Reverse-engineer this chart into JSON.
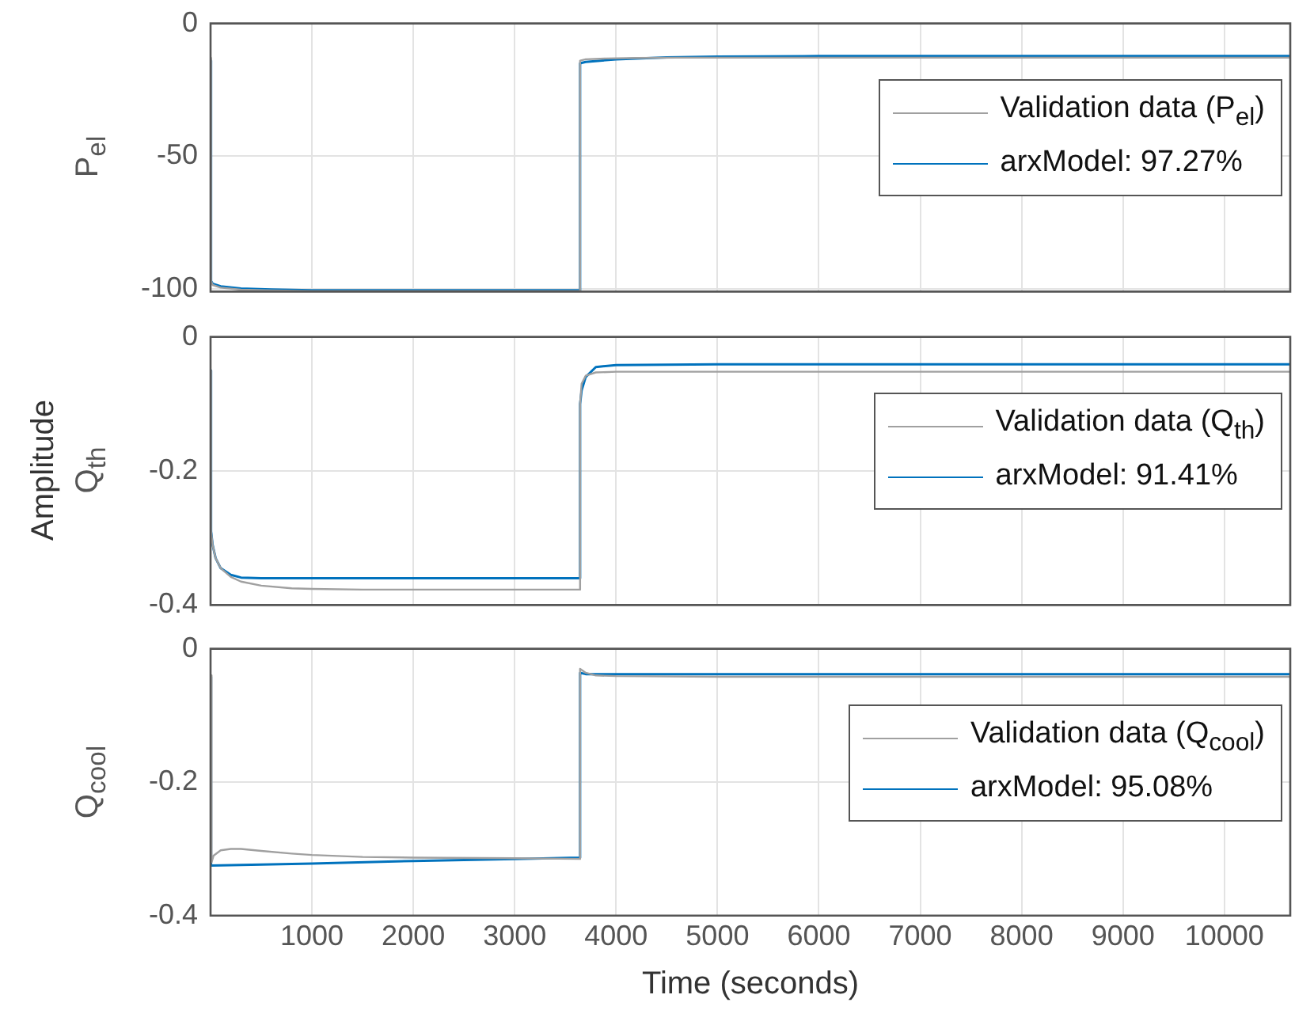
{
  "chart_data": [
    {
      "type": "line",
      "ylabel": "P$_{el}$",
      "xlim": [
        0,
        10650
      ],
      "xticks": [
        1000,
        2000,
        3000,
        4000,
        5000,
        6000,
        7000,
        8000,
        9000,
        10000
      ],
      "ylim": [
        -101,
        0
      ],
      "yticks": [
        -100,
        -50,
        0
      ],
      "grid": true,
      "legend": "top right",
      "tick_labels": "y",
      "series": [
        {
          "name": "Validation data (P$_{el}$)",
          "color": "#a0a0a0",
          "x": [
            0,
            5,
            20,
            100,
            300,
            600,
            1000,
            2000,
            3000,
            3640,
            3645,
            3700,
            3900,
            4200,
            4600,
            5000,
            6000,
            8000,
            10650
          ],
          "values": [
            -13,
            -97,
            -98.5,
            -99.5,
            -100.3,
            -100.6,
            -100.8,
            -100.8,
            -100.8,
            -100.8,
            -14,
            -13.5,
            -13.2,
            -13,
            -12.9,
            -12.9,
            -12.9,
            -12.9,
            -12.9
          ]
        },
        {
          "name": "arxModel: 97.27%",
          "color": "#0072bd",
          "x": [
            0,
            5,
            20,
            100,
            300,
            600,
            1000,
            2000,
            3000,
            3640,
            3645,
            3700,
            4000,
            4500,
            5000,
            6000,
            8000,
            10650
          ],
          "values": [
            -14,
            -97,
            -98,
            -99,
            -99.8,
            -100.2,
            -100.5,
            -100.5,
            -100.5,
            -100.5,
            -15,
            -14.5,
            -13.5,
            -12.8,
            -12.5,
            -12.3,
            -12.3,
            -12.3
          ]
        }
      ]
    },
    {
      "type": "line",
      "ylabel": "Q$_{th}$",
      "annotations": [
        "Amplitude"
      ],
      "xlim": [
        0,
        10650
      ],
      "xticks": [
        1000,
        2000,
        3000,
        4000,
        5000,
        6000,
        7000,
        8000,
        9000,
        10000
      ],
      "ylim": [
        -0.4,
        0
      ],
      "yticks": [
        -0.4,
        -0.2,
        0
      ],
      "grid": true,
      "legend": "top right",
      "tick_labels": "y",
      "series": [
        {
          "name": "Validation data (Q$_{th}$)",
          "color": "#a0a0a0",
          "x": [
            0,
            5,
            20,
            50,
            100,
            200,
            300,
            500,
            800,
            1000,
            1500,
            2000,
            3640,
            3645,
            3660,
            3700,
            3800,
            4000,
            5000,
            10650
          ],
          "values": [
            -0.05,
            -0.29,
            -0.31,
            -0.33,
            -0.345,
            -0.358,
            -0.365,
            -0.371,
            -0.375,
            -0.376,
            -0.377,
            -0.377,
            -0.377,
            -0.1,
            -0.07,
            -0.058,
            -0.053,
            -0.052,
            -0.052,
            -0.052
          ]
        },
        {
          "name": "arxModel: 91.41%",
          "color": "#0072bd",
          "x": [
            0,
            5,
            20,
            50,
            100,
            200,
            300,
            500,
            800,
            1000,
            1500,
            2000,
            3640,
            3645,
            3660,
            3700,
            3800,
            4000,
            5000,
            10650
          ],
          "values": [
            -0.05,
            -0.29,
            -0.31,
            -0.33,
            -0.345,
            -0.355,
            -0.359,
            -0.36,
            -0.36,
            -0.36,
            -0.36,
            -0.36,
            -0.36,
            -0.1,
            -0.08,
            -0.06,
            -0.045,
            -0.042,
            -0.041,
            -0.041
          ]
        }
      ]
    },
    {
      "type": "line",
      "ylabel": "Q$_{cool}$",
      "xlabel": "Time (seconds)",
      "xlim": [
        0,
        10650
      ],
      "xticks": [
        1000,
        2000,
        3000,
        4000,
        5000,
        6000,
        7000,
        8000,
        9000,
        10000
      ],
      "ylim": [
        -0.4,
        0
      ],
      "yticks": [
        -0.4,
        -0.2,
        0
      ],
      "grid": true,
      "legend": "top right",
      "series": [
        {
          "name": "Validation data (Q$_{cool}$)",
          "color": "#a0a0a0",
          "x": [
            0,
            10,
            30,
            100,
            200,
            300,
            500,
            800,
            1000,
            1500,
            2000,
            3000,
            3640,
            3645,
            3700,
            3800,
            4000,
            5000,
            10650
          ],
          "values": [
            -0.04,
            -0.32,
            -0.31,
            -0.302,
            -0.3,
            -0.3,
            -0.303,
            -0.307,
            -0.309,
            -0.312,
            -0.313,
            -0.314,
            -0.315,
            -0.03,
            -0.036,
            -0.04,
            -0.041,
            -0.042,
            -0.042
          ]
        },
        {
          "name": "arxModel: 95.08%",
          "color": "#0072bd",
          "x": [
            0,
            5,
            1000,
            2000,
            3000,
            3640,
            3645,
            3700,
            4000,
            5000,
            10650
          ],
          "values": [
            -0.042,
            -0.325,
            -0.322,
            -0.318,
            -0.315,
            -0.313,
            -0.036,
            -0.038,
            -0.038,
            -0.038,
            -0.038
          ]
        }
      ]
    }
  ]
}
